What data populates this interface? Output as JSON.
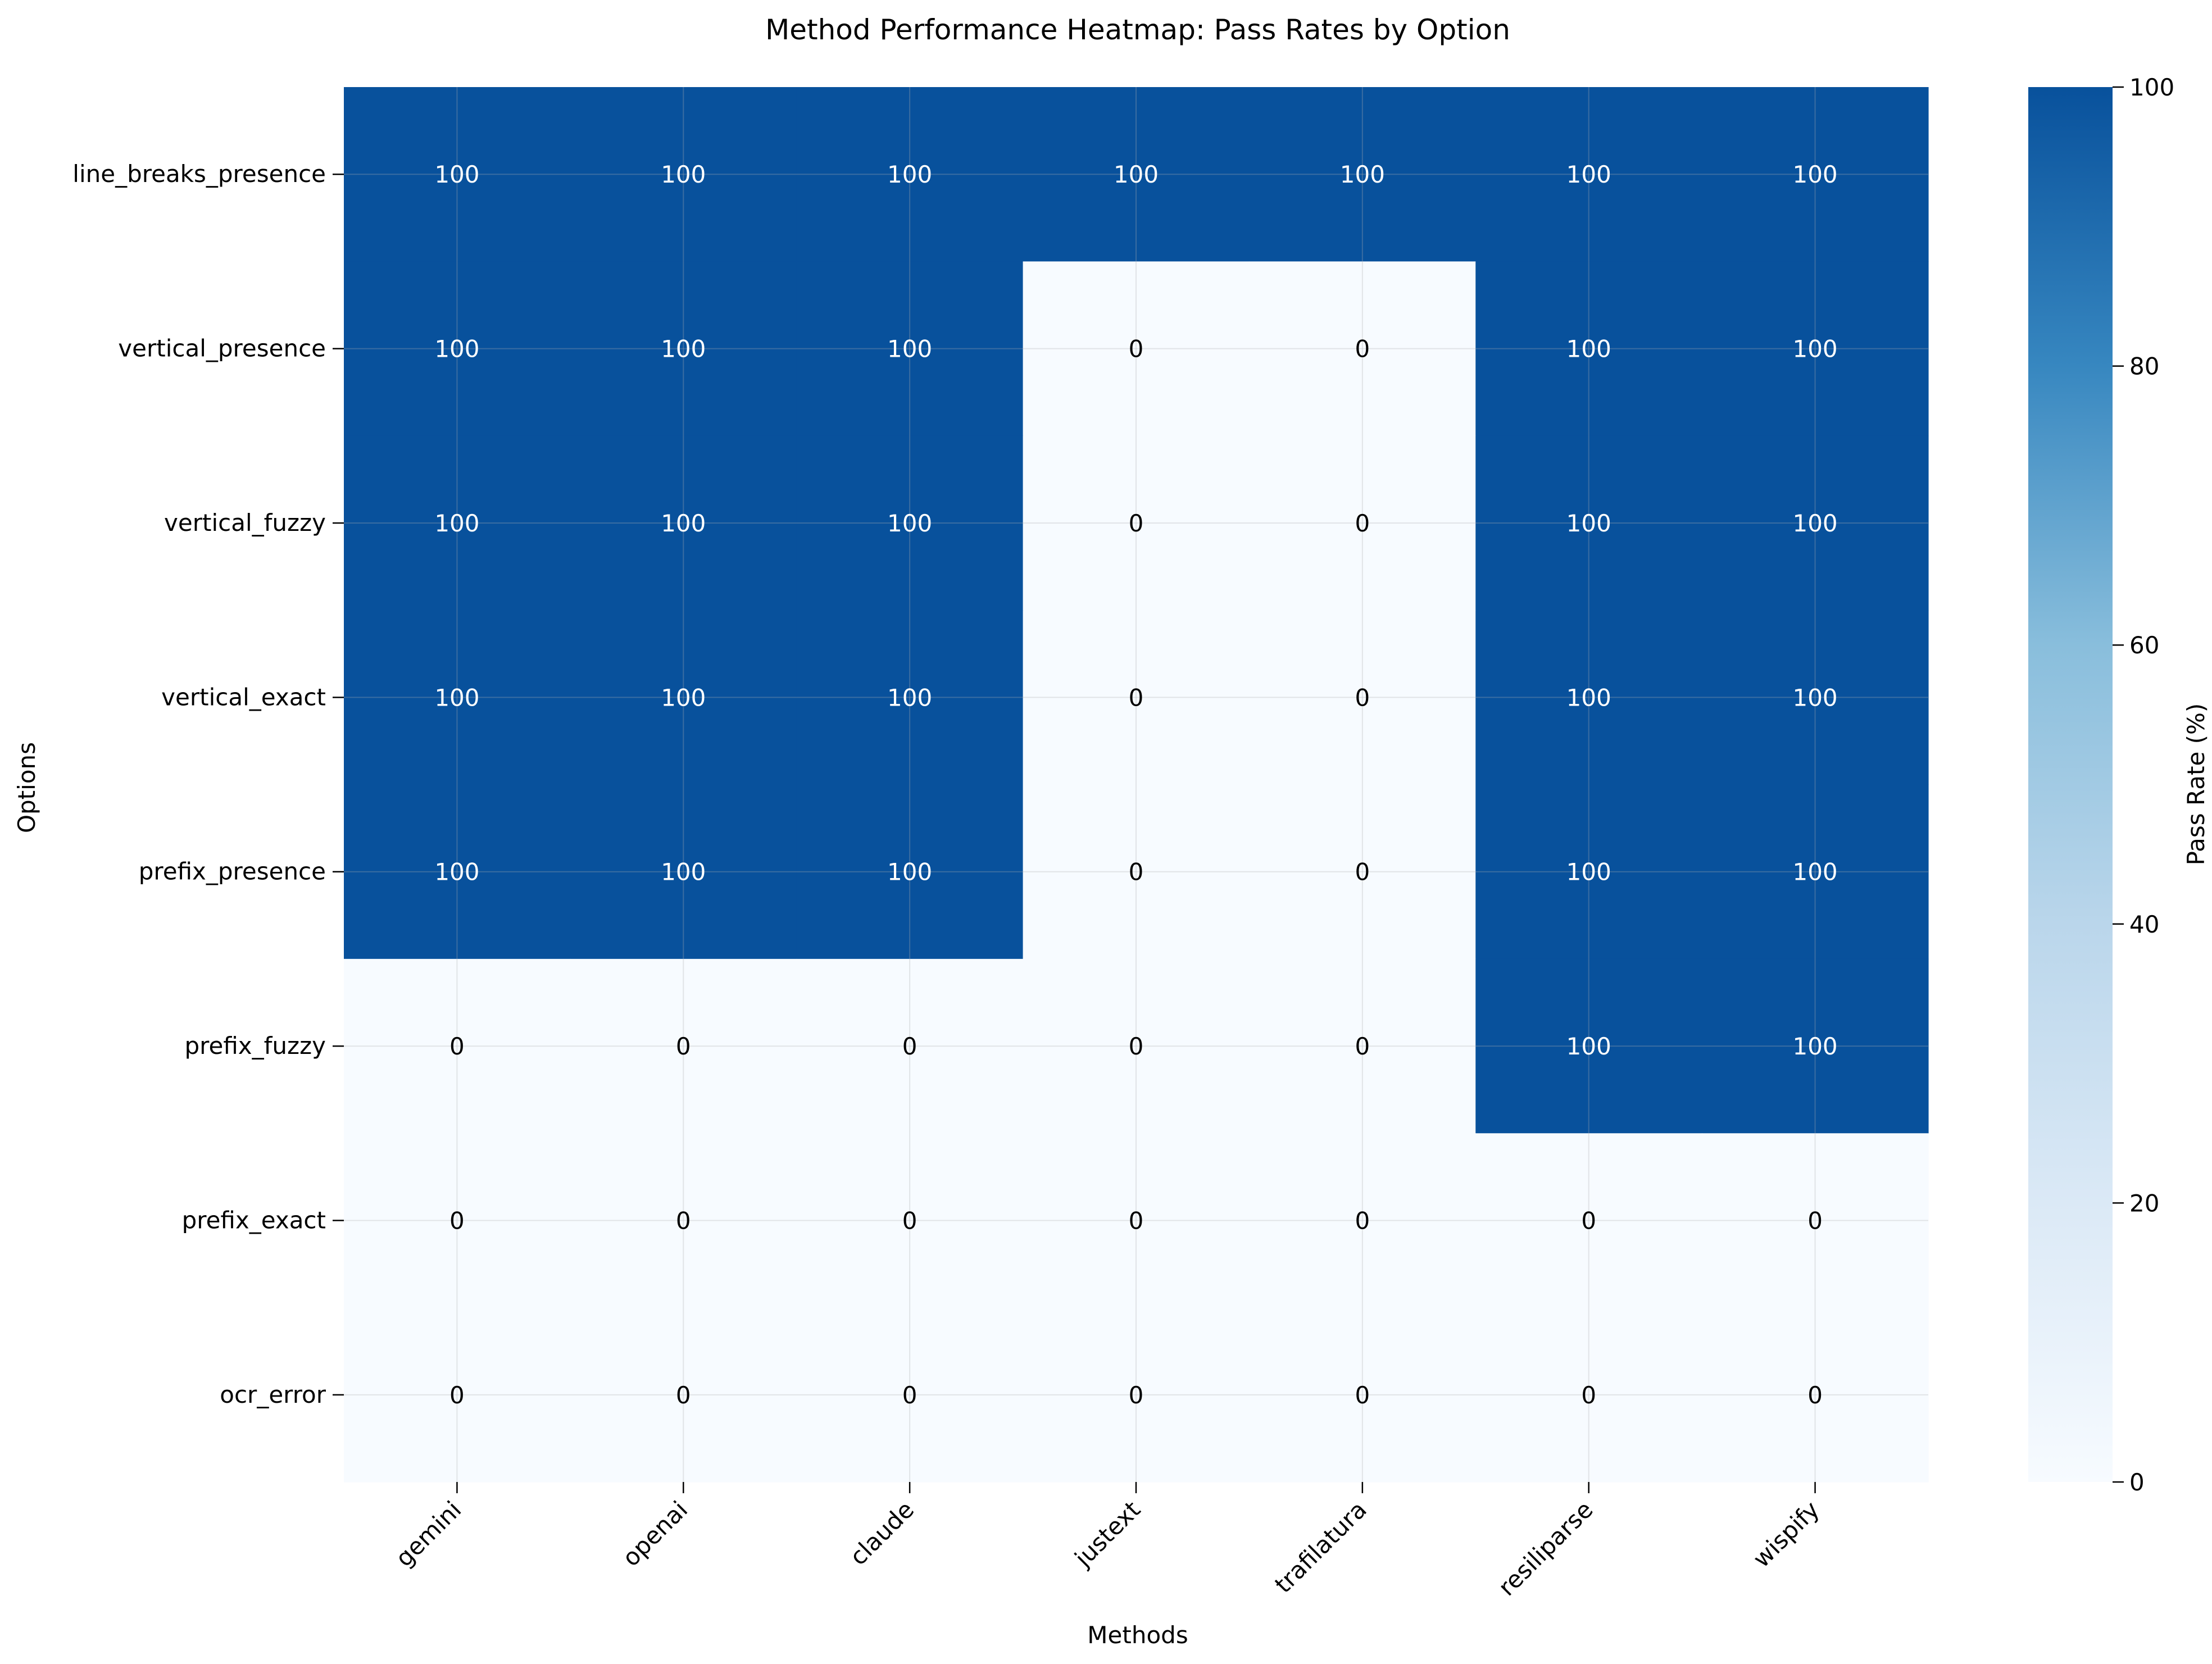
{
  "chart_data": {
    "type": "heatmap",
    "title": "Method Performance Heatmap: Pass Rates by Option",
    "xlabel": "Methods",
    "ylabel": "Options",
    "x_categories": [
      "gemini",
      "openai",
      "claude",
      "justext",
      "trafilatura",
      "resiliparse",
      "wispify"
    ],
    "y_categories": [
      "line_breaks_presence",
      "vertical_presence",
      "vertical_fuzzy",
      "vertical_exact",
      "prefix_presence",
      "prefix_fuzzy",
      "prefix_exact",
      "ocr_error"
    ],
    "values": [
      [
        100,
        100,
        100,
        100,
        100,
        100,
        100
      ],
      [
        100,
        100,
        100,
        0,
        0,
        100,
        100
      ],
      [
        100,
        100,
        100,
        0,
        0,
        100,
        100
      ],
      [
        100,
        100,
        100,
        0,
        0,
        100,
        100
      ],
      [
        100,
        100,
        100,
        0,
        0,
        100,
        100
      ],
      [
        0,
        0,
        0,
        0,
        0,
        100,
        100
      ],
      [
        0,
        0,
        0,
        0,
        0,
        0,
        0
      ],
      [
        0,
        0,
        0,
        0,
        0,
        0,
        0
      ]
    ],
    "colorbar": {
      "label": "Pass Rate (%)",
      "range": [
        0,
        100
      ],
      "ticks": [
        0,
        20,
        40,
        60,
        80,
        100
      ],
      "colormap": "Blues",
      "low_color": "#f7fbff",
      "high_color": "#08519c"
    },
    "annotations": true,
    "grid": true
  }
}
